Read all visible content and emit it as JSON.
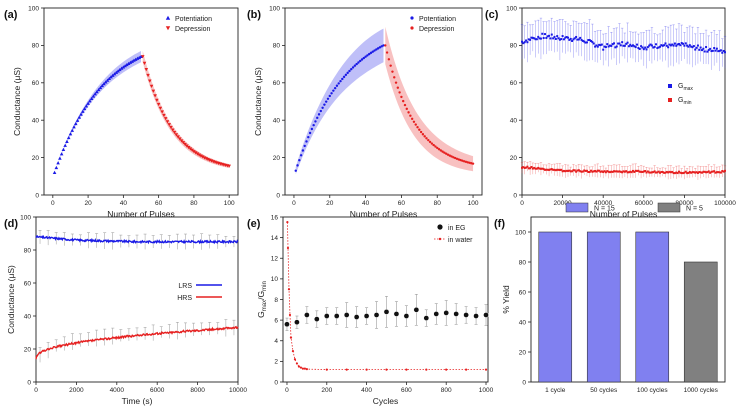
{
  "chart_data": [
    {
      "panel": "(a)",
      "type": "scatter",
      "xlabel": "Number of Pulses",
      "ylabel": "Conductance (μS)",
      "xlim": [
        -5,
        105
      ],
      "ylim": [
        0,
        100
      ],
      "xticks": [
        "0",
        "20",
        "40",
        "60",
        "80",
        "100"
      ],
      "yticks": [
        "0",
        "20",
        "40",
        "60",
        "80",
        "100"
      ],
      "legend_position": "top-right",
      "series": [
        {
          "name": "Potentiation",
          "color": "#1a1ae6",
          "marker": "triangle-up",
          "x_range": [
            1,
            50
          ],
          "start": 12,
          "end": 74,
          "n": 50
        },
        {
          "name": "Depression",
          "color": "#e62020",
          "marker": "triangle-down",
          "x_range": [
            51,
            100
          ],
          "start": 74,
          "end": 12,
          "n": 50
        }
      ],
      "band_halfwidth": [
        0,
        3
      ]
    },
    {
      "panel": "(b)",
      "type": "scatter",
      "xlabel": "Number of Pulses",
      "ylabel": "Conductance (μS)",
      "xlim": [
        -5,
        105
      ],
      "ylim": [
        0,
        100
      ],
      "xticks": [
        "0",
        "20",
        "40",
        "60",
        "80",
        "100"
      ],
      "yticks": [
        "0",
        "20",
        "40",
        "60",
        "80",
        "100"
      ],
      "legend_position": "top-right",
      "series": [
        {
          "name": "Potentiation",
          "color": "#1a1ae6",
          "marker": "dot",
          "x_range": [
            1,
            50
          ],
          "start": 13,
          "end": 80,
          "n": 50
        },
        {
          "name": "Depression",
          "color": "#e62020",
          "marker": "dot",
          "x_range": [
            51,
            100
          ],
          "start": 80,
          "end": 13,
          "n": 50
        }
      ],
      "band_halfwidth": [
        2,
        9
      ]
    },
    {
      "panel": "(c)",
      "type": "scatter",
      "xlabel": "Number of Pulses",
      "ylabel": "",
      "xlim": [
        0,
        100000
      ],
      "ylim": [
        0,
        100
      ],
      "xticks": [
        "0",
        "20000",
        "40000",
        "60000",
        "80000",
        "100000"
      ],
      "yticks": [
        "0",
        "20",
        "40",
        "60",
        "80",
        "100"
      ],
      "legend_position": "right",
      "series": [
        {
          "name": "G",
          "sub": "max",
          "color": "#1a1ae6",
          "values_at": [
            [
              0,
              82
            ],
            [
              10000,
              85
            ],
            [
              20000,
              84
            ],
            [
              30000,
              83
            ],
            [
              40000,
              79
            ],
            [
              50000,
              81
            ],
            [
              60000,
              79
            ],
            [
              70000,
              80
            ],
            [
              80000,
              80
            ],
            [
              90000,
              78
            ],
            [
              100000,
              77
            ]
          ],
          "error": 9
        },
        {
          "name": "G",
          "sub": "min",
          "color": "#e62020",
          "values_at": [
            [
              0,
              15
            ],
            [
              20000,
              13
            ],
            [
              40000,
              12.5
            ],
            [
              60000,
              12.5
            ],
            [
              80000,
              12
            ],
            [
              100000,
              12.5
            ]
          ],
          "error": 3
        }
      ]
    },
    {
      "panel": "(d)",
      "type": "line",
      "xlabel": "Time (s)",
      "ylabel": "Conductance (μS)",
      "xlim": [
        0,
        10000
      ],
      "ylim": [
        0,
        100
      ],
      "xticks": [
        "0",
        "2000",
        "4000",
        "6000",
        "8000",
        "10000"
      ],
      "yticks": [
        "0",
        "20",
        "40",
        "60",
        "80",
        "100"
      ],
      "legend_position": "right",
      "series": [
        {
          "name": "LRS",
          "color": "#1a1ae6",
          "values_at": [
            [
              0,
              88
            ],
            [
              2000,
              86
            ],
            [
              5000,
              85
            ],
            [
              10000,
              85
            ]
          ],
          "error": 4
        },
        {
          "name": "HRS",
          "color": "#e62020",
          "values_at": [
            [
              0,
              15
            ],
            [
              1000,
              22
            ],
            [
              2000,
              25
            ],
            [
              4000,
              28
            ],
            [
              6000,
              30
            ],
            [
              8000,
              32
            ],
            [
              10000,
              33
            ]
          ],
          "error": 4
        }
      ]
    },
    {
      "panel": "(e)",
      "type": "scatter",
      "xlabel": "Cycles",
      "ylabel_main": "G",
      "ylabel_sub1": "max",
      "ylabel_mid": "/G",
      "ylabel_sub2": "min",
      "xlim": [
        -20,
        1010
      ],
      "ylim": [
        0,
        16
      ],
      "xticks": [
        "0",
        "200",
        "400",
        "600",
        "800",
        "1000"
      ],
      "yticks": [
        "0",
        "2",
        "4",
        "6",
        "8",
        "10",
        "12",
        "14",
        "16"
      ],
      "legend_position": "top-right",
      "series": [
        {
          "name": "in EG",
          "color": "#111111",
          "marker": "circle",
          "x": [
            0,
            50,
            100,
            150,
            200,
            250,
            300,
            350,
            400,
            450,
            500,
            550,
            600,
            650,
            700,
            750,
            800,
            850,
            900,
            950,
            1000
          ],
          "y": [
            5.6,
            5.8,
            6.5,
            6.1,
            6.4,
            6.4,
            6.5,
            6.3,
            6.4,
            6.5,
            6.8,
            6.6,
            6.4,
            7.0,
            6.2,
            6.6,
            6.7,
            6.6,
            6.5,
            6.4,
            6.5
          ],
          "error": [
            0.6,
            0.6,
            0.8,
            0.8,
            0.8,
            0.8,
            1.2,
            1.0,
            0.8,
            1.3,
            1.5,
            1.2,
            1.0,
            1.5,
            0.8,
            1.0,
            1.2,
            1.0,
            0.8,
            0.8,
            1.0
          ]
        },
        {
          "name": "in water",
          "color": "#e62020",
          "marker": "dot",
          "x": [
            2,
            5,
            10,
            15,
            20,
            30,
            40,
            50,
            60,
            70,
            80,
            90,
            100,
            200,
            300,
            400,
            500,
            600,
            700,
            800,
            900,
            1000
          ],
          "y": [
            15.5,
            13,
            9,
            6.5,
            4.3,
            3,
            2.2,
            1.8,
            1.5,
            1.4,
            1.3,
            1.3,
            1.25,
            1.2,
            1.2,
            1.2,
            1.2,
            1.2,
            1.2,
            1.2,
            1.2,
            1.2
          ]
        }
      ]
    },
    {
      "panel": "(f)",
      "type": "bar",
      "ylabel": "% Yield",
      "ylim": [
        0,
        110
      ],
      "yticks": [
        "0",
        "20",
        "40",
        "60",
        "80",
        "100"
      ],
      "categories": [
        "1 cycle",
        "50 cycles",
        "100 cycles",
        "1000 cycles"
      ],
      "values": [
        100,
        100,
        100,
        80
      ],
      "bar_colors": [
        "#8080f0",
        "#8080f0",
        "#8080f0",
        "#808080"
      ],
      "legend": [
        {
          "label": "N = 15",
          "color": "#8080f0"
        },
        {
          "label": "N = 5",
          "color": "#808080"
        }
      ],
      "legend_position": "top"
    }
  ]
}
